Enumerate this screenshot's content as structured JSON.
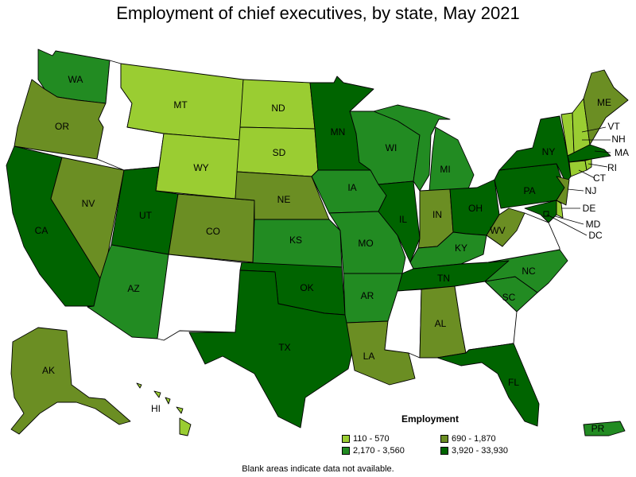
{
  "title": "Employment of chief executives, by state, May 2021",
  "legend": {
    "title": "Employment",
    "items": [
      {
        "label": "110 - 570",
        "color": "#9acd32"
      },
      {
        "label": "690 - 1,870",
        "color": "#6b8e23"
      },
      {
        "label": "2,170 - 3,560",
        "color": "#228b22"
      },
      {
        "label": "3,920 - 33,930",
        "color": "#006400"
      }
    ]
  },
  "no_data_color": "#ffffff",
  "note": "Blank areas indicate data not available.",
  "states": {
    "WA": {
      "label": "WA",
      "tier": 2
    },
    "OR": {
      "label": "OR",
      "tier": 1
    },
    "CA": {
      "label": "CA",
      "tier": 3
    },
    "NV": {
      "label": "NV",
      "tier": 1
    },
    "ID": {
      "label": "",
      "tier": -1
    },
    "MT": {
      "label": "MT",
      "tier": 0
    },
    "WY": {
      "label": "WY",
      "tier": 0
    },
    "UT": {
      "label": "UT",
      "tier": 3
    },
    "AZ": {
      "label": "AZ",
      "tier": 2
    },
    "CO": {
      "label": "CO",
      "tier": 1
    },
    "NM": {
      "label": "",
      "tier": -1
    },
    "ND": {
      "label": "ND",
      "tier": 0
    },
    "SD": {
      "label": "SD",
      "tier": 0
    },
    "NE": {
      "label": "NE",
      "tier": 1
    },
    "KS": {
      "label": "KS",
      "tier": 2
    },
    "OK": {
      "label": "OK",
      "tier": 3
    },
    "TX": {
      "label": "TX",
      "tier": 3
    },
    "MN": {
      "label": "MN",
      "tier": 3
    },
    "IA": {
      "label": "IA",
      "tier": 2
    },
    "MO": {
      "label": "MO",
      "tier": 2
    },
    "AR": {
      "label": "AR",
      "tier": 2
    },
    "LA": {
      "label": "LA",
      "tier": 1
    },
    "WI": {
      "label": "WI",
      "tier": 2
    },
    "IL": {
      "label": "IL",
      "tier": 3
    },
    "MI": {
      "label": "MI",
      "tier": 2
    },
    "IN": {
      "label": "IN",
      "tier": 1
    },
    "OH": {
      "label": "OH",
      "tier": 3
    },
    "KY": {
      "label": "KY",
      "tier": 2
    },
    "TN": {
      "label": "TN",
      "tier": 3
    },
    "MS": {
      "label": "",
      "tier": -1
    },
    "AL": {
      "label": "AL",
      "tier": 1
    },
    "GA": {
      "label": "",
      "tier": -1
    },
    "FL": {
      "label": "FL",
      "tier": 3
    },
    "SC": {
      "label": "SC",
      "tier": 2
    },
    "NC": {
      "label": "NC",
      "tier": 2
    },
    "VA": {
      "label": "",
      "tier": -1
    },
    "WV": {
      "label": "WV",
      "tier": 1
    },
    "PA": {
      "label": "PA",
      "tier": 3
    },
    "NY": {
      "label": "NY",
      "tier": 3
    },
    "ME": {
      "label": "ME",
      "tier": 1
    },
    "NH": {
      "label": "NH",
      "tier": 0
    },
    "VT": {
      "label": "VT",
      "tier": 0
    },
    "MA": {
      "label": "MA",
      "tier": 3
    },
    "RI": {
      "label": "RI",
      "tier": 0
    },
    "CT": {
      "label": "CT",
      "tier": 0
    },
    "NJ": {
      "label": "NJ",
      "tier": 1
    },
    "DE": {
      "label": "DE",
      "tier": 0
    },
    "MD": {
      "label": "MD",
      "tier": 3
    },
    "DC": {
      "label": "DC",
      "tier": 3
    },
    "AK": {
      "label": "AK",
      "tier": 1
    },
    "HI": {
      "label": "HI",
      "tier": 0
    },
    "PR": {
      "label": "PR",
      "tier": 2
    }
  }
}
